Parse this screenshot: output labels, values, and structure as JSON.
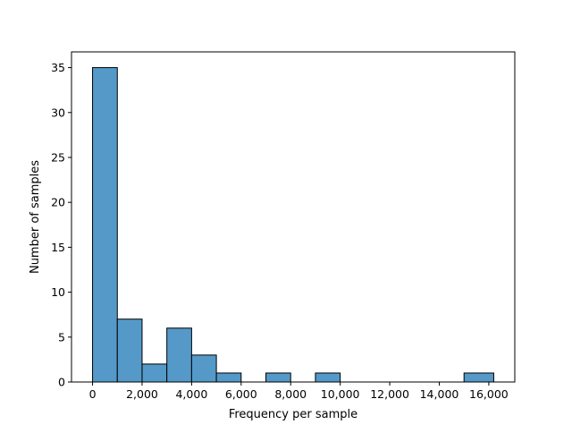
{
  "chart_data": {
    "type": "bar",
    "subtype": "histogram",
    "title": "",
    "xlabel": "Frequency per sample",
    "ylabel": "Number of samples",
    "xlim": [
      -850,
      17050
    ],
    "ylim": [
      0,
      36.75
    ],
    "x_ticks": [
      0,
      2000,
      4000,
      6000,
      8000,
      10000,
      12000,
      14000,
      16000
    ],
    "x_tick_labels": [
      "0",
      "2,000",
      "4,000",
      "6,000",
      "8,000",
      "10,000",
      "12,000",
      "14,000",
      "16,000"
    ],
    "y_ticks": [
      0,
      5,
      10,
      15,
      20,
      25,
      30,
      35
    ],
    "y_tick_labels": [
      "0",
      "5",
      "10",
      "15",
      "20",
      "25",
      "30",
      "35"
    ],
    "bin_edges": [
      0,
      1000,
      2000,
      3000,
      4000,
      5000,
      6000,
      7000,
      8000,
      9000,
      10000,
      11000,
      12000,
      13000,
      14000,
      15000,
      16200
    ],
    "counts": [
      35,
      7,
      2,
      6,
      3,
      1,
      0,
      1,
      0,
      1,
      0,
      0,
      0,
      0,
      0,
      1
    ],
    "bar_color": "#5499c8",
    "edge_color": "#000000",
    "grid": false,
    "legend": "none"
  }
}
